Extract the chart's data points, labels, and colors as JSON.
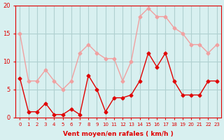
{
  "x": [
    0,
    1,
    2,
    3,
    4,
    5,
    6,
    7,
    8,
    9,
    10,
    11,
    12,
    13,
    14,
    15,
    16,
    17,
    18,
    19,
    20,
    21,
    22,
    23
  ],
  "wind_mean": [
    7,
    1,
    1,
    2.5,
    0.5,
    0.5,
    1.5,
    0.5,
    7.5,
    5,
    1,
    3.5,
    3.5,
    4,
    6.5,
    11.5,
    9,
    11.5,
    6.5,
    4,
    4,
    4,
    6.5,
    6.5
  ],
  "wind_gust": [
    15,
    6.5,
    6.5,
    8.5,
    6.5,
    5,
    6.5,
    11.5,
    13,
    11.5,
    10.5,
    10.5,
    6.5,
    10,
    18,
    19.5,
    18,
    18,
    16,
    15,
    13,
    13,
    11.5,
    13
  ],
  "mean_color": "#e00000",
  "gust_color": "#f0a0a0",
  "bg_color": "#d8f0f0",
  "grid_color": "#b0d0d0",
  "xlabel": "Vent moyen/en rafales ( km/h )",
  "xlabel_color": "#e00000",
  "tick_color": "#e00000",
  "ylim": [
    0,
    20
  ],
  "yticks": [
    0,
    5,
    10,
    15,
    20
  ],
  "xticks": [
    0,
    1,
    2,
    3,
    4,
    5,
    6,
    7,
    8,
    9,
    10,
    11,
    12,
    13,
    14,
    15,
    16,
    17,
    18,
    19,
    20,
    21,
    22,
    23
  ]
}
